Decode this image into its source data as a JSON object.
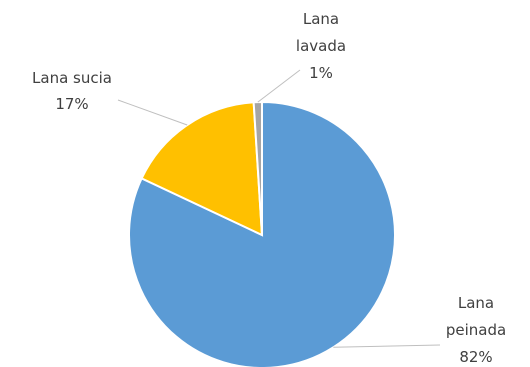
{
  "chart_data": {
    "type": "pie",
    "title": "",
    "slices": [
      {
        "label": "Lana peinada",
        "label_lines": [
          "Lana",
          "peinada"
        ],
        "value": 82,
        "value_label": "82%",
        "color": "#5B9BD5"
      },
      {
        "label": "Lana sucia",
        "label_lines": [
          "Lana sucia"
        ],
        "value": 17,
        "value_label": "17%",
        "color": "#FFC000"
      },
      {
        "label": "Lana lavada",
        "label_lines": [
          "Lana",
          "lavada"
        ],
        "value": 1,
        "value_label": "1%",
        "color": "#A5A5A5"
      }
    ],
    "start_angle": "12 o'clock",
    "direction": "clockwise",
    "legend": "none",
    "data_labels": "outside with leader lines"
  }
}
